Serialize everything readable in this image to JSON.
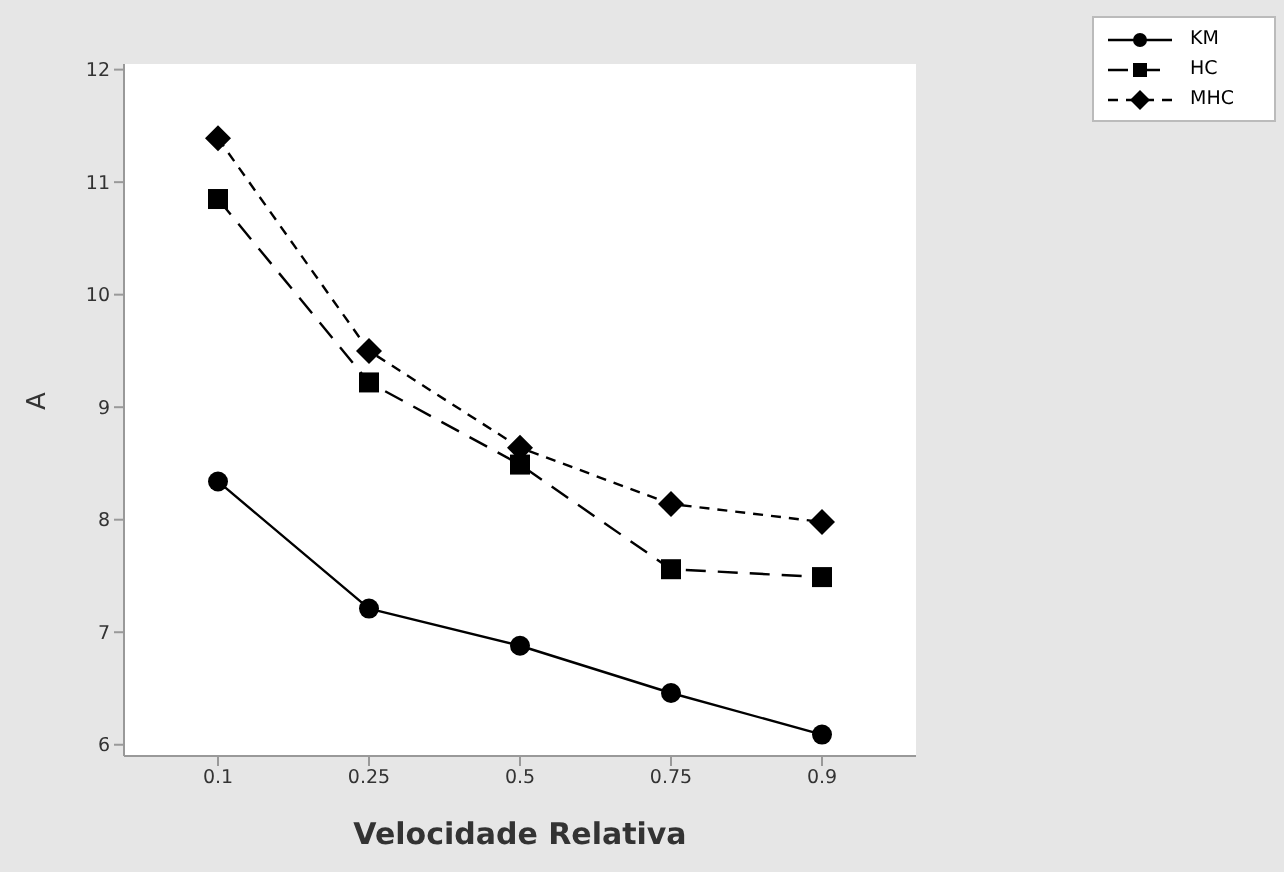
{
  "chart_data": {
    "type": "line",
    "xlabel": "Velocidade Relativa",
    "ylabel": "A",
    "categories": [
      "0.1",
      "0.25",
      "0.5",
      "0.75",
      "0.9"
    ],
    "series": [
      {
        "name": "KM",
        "color": "#000000",
        "values": [
          8.34,
          7.21,
          6.88,
          6.46,
          6.09
        ],
        "marker": "circle",
        "line_style": "solid"
      },
      {
        "name": "HC",
        "color": "#000000",
        "values": [
          10.85,
          9.22,
          8.49,
          7.56,
          7.49
        ],
        "marker": "square",
        "line_style": "dashed"
      },
      {
        "name": "MHC",
        "color": "#000000",
        "values": [
          11.39,
          9.5,
          8.64,
          8.14,
          7.98
        ],
        "marker": "diamond",
        "line_style": "dotted"
      }
    ],
    "ylim": [
      5.9,
      12.05
    ],
    "yticks": [
      6,
      7,
      8,
      9,
      10,
      11,
      12
    ],
    "grid": false,
    "legend": "top right"
  }
}
